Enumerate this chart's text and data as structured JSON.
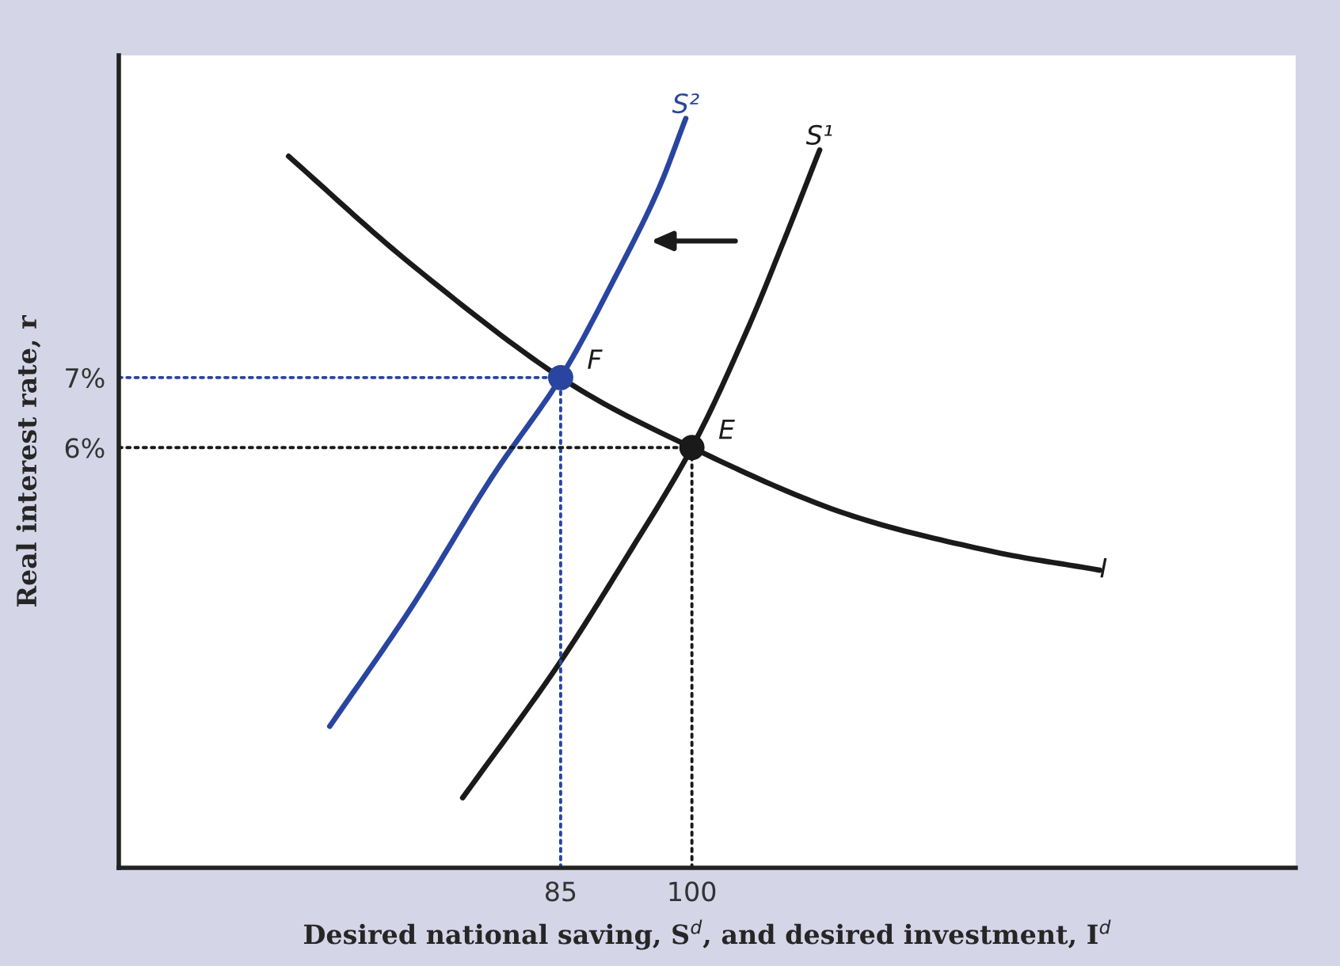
{
  "chart_data": {
    "type": "line",
    "xlabel": "Desired national saving, S$^{d}$, and desired investment, I$^{d}$",
    "ylabel": "Real interest rate, r",
    "xlim": [
      34.5,
      169
    ],
    "ylim": [
      0,
      11.6
    ],
    "xticks": [
      85,
      100
    ],
    "yticks": [
      {
        "value": 6,
        "label": "6%"
      },
      {
        "value": 7,
        "label": "7%"
      }
    ],
    "grid": false,
    "legend": false,
    "series": [
      {
        "name": "I",
        "color": "#1a1a1a",
        "x": [
          53.9,
          68,
          85,
          100,
          116.8,
          133.1,
          146.6
        ],
        "values": [
          10.16,
          8.61,
          7,
          6,
          5.09,
          4.55,
          4.25
        ]
      },
      {
        "name": "S¹",
        "color": "#1a1a1a",
        "x": [
          73.8,
          84.3,
          92.4,
          100,
          106,
          110.5,
          114.6
        ],
        "values": [
          1.0,
          2.82,
          4.41,
          6,
          7.59,
          8.95,
          10.25
        ]
      },
      {
        "name": "S²",
        "color": "#2a45a0",
        "x": [
          58.6,
          68,
          77,
          85,
          91.5,
          96,
          99.3
        ],
        "values": [
          2.02,
          3.73,
          5.55,
          7,
          8.5,
          9.64,
          10.7
        ]
      },
      {
        "color": "#2a45a0",
        "line_style": "dotted",
        "x": [
          34.5,
          85
        ],
        "values": [
          7,
          7
        ]
      },
      {
        "color": "#2a45a0",
        "line_style": "dotted",
        "x": [
          85,
          85
        ],
        "values": [
          0,
          7
        ]
      },
      {
        "color": "#1a1a1a",
        "line_style": "dotted",
        "x": [
          34.5,
          100
        ],
        "values": [
          6,
          6
        ]
      },
      {
        "color": "#1a1a1a",
        "line_style": "dotted",
        "x": [
          100,
          100
        ],
        "values": [
          0,
          6
        ]
      },
      {
        "type": "scatter",
        "marker": "circle",
        "colors": [
          "#2a45a0",
          "#1a1a1a"
        ],
        "x": [
          85,
          100
        ],
        "values": [
          7,
          6
        ]
      }
    ],
    "annotations": [
      {
        "text": "F",
        "x": 85,
        "y": 7
      },
      {
        "text": "E",
        "x": 100,
        "y": 6
      }
    ]
  }
}
